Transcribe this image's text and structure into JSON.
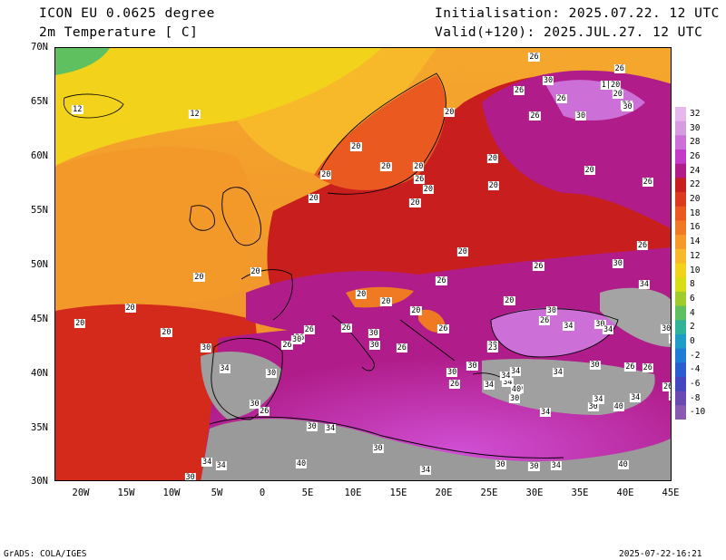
{
  "header": {
    "model_line": "ICON EU 0.0625 degree",
    "variable_line": "2m Temperature [ C]",
    "init_line": "Initialisation: 2025.07.22. 12 UTC",
    "valid_line": "Valid(+120): 2025.JUL.27. 12 UTC"
  },
  "axes": {
    "lat_labels": [
      "70N",
      "65N",
      "60N",
      "55N",
      "50N",
      "45N",
      "40N",
      "35N",
      "30N"
    ],
    "lon_labels": [
      "20W",
      "15W",
      "10W",
      "5W",
      "0",
      "5E",
      "10E",
      "15E",
      "20E",
      "25E",
      "30E",
      "35E",
      "40E",
      "45E"
    ]
  },
  "colorbar": {
    "labels": [
      "32",
      "30",
      "28",
      "26",
      "24",
      "22",
      "20",
      "18",
      "16",
      "14",
      "12",
      "10",
      "8",
      "6",
      "4",
      "2",
      "0",
      "-2",
      "-4",
      "-6",
      "-8",
      "-10"
    ],
    "colors": [
      "#e8b8ec",
      "#d89ae0",
      "#cc6fd6",
      "#c33bc6",
      "#b01c8a",
      "#c81e1e",
      "#dc3a1e",
      "#ea5a20",
      "#f07a24",
      "#f59a28",
      "#f7b82a",
      "#f2d21a",
      "#d9dd15",
      "#9fcc2a",
      "#5fc05f",
      "#2fb49a",
      "#1e9ec6",
      "#1e7ed6",
      "#2a5ed0",
      "#4646c0",
      "#6a4ab0",
      "#8a5ab0"
    ]
  },
  "map_labels": [
    {
      "t": "20",
      "lon": -16.5,
      "lat": 46.0
    },
    {
      "t": "20",
      "lon": -22.2,
      "lat": 44.6
    },
    {
      "t": "20",
      "lon": -12.4,
      "lat": 43.8
    },
    {
      "t": "20",
      "lon": -8.7,
      "lat": 48.9
    },
    {
      "t": "20",
      "lon": -2.3,
      "lat": 49.4
    },
    {
      "t": "20",
      "lon": 4.3,
      "lat": 56.1
    },
    {
      "t": "20",
      "lon": 5.7,
      "lat": 58.3
    },
    {
      "t": "20",
      "lon": 15.8,
      "lat": 55.7
    },
    {
      "t": "20",
      "lon": 9.1,
      "lat": 60.9
    },
    {
      "t": "20",
      "lon": 17.3,
      "lat": 57.0
    },
    {
      "t": "20",
      "lon": 19.7,
      "lat": 64.1
    },
    {
      "t": "20",
      "lon": 24.6,
      "lat": 59.8
    },
    {
      "t": "20",
      "lon": 24.7,
      "lat": 57.3
    },
    {
      "t": "20",
      "lon": 21.2,
      "lat": 51.2
    },
    {
      "t": "20",
      "lon": 26.5,
      "lat": 46.7
    },
    {
      "t": "20",
      "lon": 9.7,
      "lat": 47.3
    },
    {
      "t": "20",
      "lon": 12.5,
      "lat": 46.6
    },
    {
      "t": "20",
      "lon": 15.9,
      "lat": 45.8
    },
    {
      "t": "20",
      "lon": 16.2,
      "lat": 59.1
    },
    {
      "t": "20",
      "lon": 12.5,
      "lat": 59.1
    },
    {
      "t": "20",
      "lon": 35.6,
      "lat": 58.7
    },
    {
      "t": "20",
      "lon": 38.8,
      "lat": 65.7
    },
    {
      "t": "12",
      "lon": -22.5,
      "lat": 64.3
    },
    {
      "t": "12",
      "lon": -9.2,
      "lat": 63.9
    },
    {
      "t": "26",
      "lon": 29.3,
      "lat": 69.2
    },
    {
      "t": "26",
      "lon": 27.6,
      "lat": 66.1
    },
    {
      "t": "26",
      "lon": 39.0,
      "lat": 68.1
    },
    {
      "t": "26",
      "lon": 32.4,
      "lat": 65.3
    },
    {
      "t": "26",
      "lon": 29.4,
      "lat": 63.7
    },
    {
      "t": "26",
      "lon": 39.8,
      "lat": 64.7
    },
    {
      "t": "26",
      "lon": 42.2,
      "lat": 57.6
    },
    {
      "t": "26",
      "lon": 16.3,
      "lat": 57.9
    },
    {
      "t": "26",
      "lon": 41.6,
      "lat": 51.8
    },
    {
      "t": "26",
      "lon": 29.8,
      "lat": 49.9
    },
    {
      "t": "26",
      "lon": 18.8,
      "lat": 48.5
    },
    {
      "t": "26",
      "lon": 30.5,
      "lat": 44.9
    },
    {
      "t": "26",
      "lon": 3.8,
      "lat": 44.0
    },
    {
      "t": "26",
      "lon": 8.0,
      "lat": 44.2
    },
    {
      "t": "26",
      "lon": 14.3,
      "lat": 42.4
    },
    {
      "t": "26",
      "lon": 19.0,
      "lat": 44.1
    },
    {
      "t": "26",
      "lon": 20.3,
      "lat": 39.0
    },
    {
      "t": "26",
      "lon": 40.2,
      "lat": 40.6
    },
    {
      "t": "26",
      "lon": 42.2,
      "lat": 40.5
    },
    {
      "t": "26",
      "lon": 44.5,
      "lat": 38.8
    },
    {
      "t": "26",
      "lon": -1.3,
      "lat": 36.5
    },
    {
      "t": "26",
      "lon": 2.7,
      "lat": 43.3
    },
    {
      "t": "26",
      "lon": 1.3,
      "lat": 42.6
    },
    {
      "t": "1|20",
      "lon": 38.0,
      "lat": 66.6
    },
    {
      "t": "30",
      "lon": 30.9,
      "lat": 67.0
    },
    {
      "t": "30",
      "lon": 39.9,
      "lat": 64.6
    },
    {
      "t": "30",
      "lon": 34.6,
      "lat": 63.7
    },
    {
      "t": "30",
      "lon": 38.8,
      "lat": 50.1
    },
    {
      "t": "30",
      "lon": 31.3,
      "lat": 45.8
    },
    {
      "t": "30",
      "lon": 36.8,
      "lat": 44.5
    },
    {
      "t": "30",
      "lon": 2.4,
      "lat": 43.1
    },
    {
      "t": "30",
      "lon": 11.1,
      "lat": 43.7
    },
    {
      "t": "30",
      "lon": 11.2,
      "lat": 42.6
    },
    {
      "t": "30",
      "lon": -7.9,
      "lat": 42.4
    },
    {
      "t": "30",
      "lon": -0.5,
      "lat": 40.0
    },
    {
      "t": "30",
      "lon": -2.4,
      "lat": 37.2
    },
    {
      "t": "30",
      "lon": 4.1,
      "lat": 35.1
    },
    {
      "t": "30",
      "lon": 11.6,
      "lat": 33.1
    },
    {
      "t": "30",
      "lon": -9.7,
      "lat": 30.4
    },
    {
      "t": "30",
      "lon": 20.0,
      "lat": 40.1
    },
    {
      "t": "30",
      "lon": 22.3,
      "lat": 40.7
    },
    {
      "t": "30",
      "lon": 24.6,
      "lat": 42.6
    },
    {
      "t": "30",
      "lon": 27.1,
      "lat": 37.7
    },
    {
      "t": "30",
      "lon": 36.2,
      "lat": 40.8
    },
    {
      "t": "30",
      "lon": 36.0,
      "lat": 36.9
    },
    {
      "t": "30",
      "lon": 25.5,
      "lat": 31.6
    },
    {
      "t": "30",
      "lon": 29.3,
      "lat": 31.4
    },
    {
      "t": "30",
      "lon": 45.2,
      "lat": 37.9
    },
    {
      "t": "30",
      "lon": 44.3,
      "lat": 44.1
    },
    {
      "t": "30",
      "lon": 27.5,
      "lat": 38.6
    },
    {
      "t": "34",
      "lon": 41.8,
      "lat": 48.2
    },
    {
      "t": "34",
      "lon": 33.2,
      "lat": 44.4
    },
    {
      "t": "34",
      "lon": 37.7,
      "lat": 44.0
    },
    {
      "t": "34",
      "lon": 45.2,
      "lat": 43.2
    },
    {
      "t": "34",
      "lon": -5.8,
      "lat": 40.4
    },
    {
      "t": "34",
      "lon": 24.2,
      "lat": 38.9
    },
    {
      "t": "34",
      "lon": 27.2,
      "lat": 40.2
    },
    {
      "t": "34",
      "lon": 26.3,
      "lat": 39.2
    },
    {
      "t": "34",
      "lon": 32.0,
      "lat": 40.1
    },
    {
      "t": "34",
      "lon": 40.8,
      "lat": 37.8
    },
    {
      "t": "34",
      "lon": 30.6,
      "lat": 36.4
    },
    {
      "t": "34",
      "lon": 36.6,
      "lat": 37.6
    },
    {
      "t": "34",
      "lon": 6.2,
      "lat": 34.9
    },
    {
      "t": "34",
      "lon": -7.8,
      "lat": 31.8
    },
    {
      "t": "34",
      "lon": -6.2,
      "lat": 31.5
    },
    {
      "t": "34",
      "lon": 17.0,
      "lat": 31.1
    },
    {
      "t": "34",
      "lon": 31.8,
      "lat": 31.5
    },
    {
      "t": "34",
      "lon": 26.1,
      "lat": 39.8
    },
    {
      "t": "23",
      "lon": 24.6,
      "lat": 42.4
    },
    {
      "t": "40",
      "lon": 2.9,
      "lat": 31.7
    },
    {
      "t": "40",
      "lon": 38.9,
      "lat": 36.9
    },
    {
      "t": "40",
      "lon": 39.4,
      "lat": 31.6
    },
    {
      "t": "40",
      "lon": 27.3,
      "lat": 38.5
    }
  ]
}
